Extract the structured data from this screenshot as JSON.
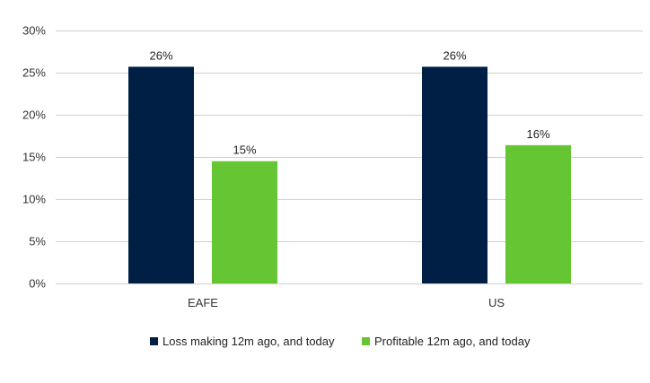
{
  "chart_data": {
    "type": "bar",
    "categories": [
      "EAFE",
      "US"
    ],
    "series": [
      {
        "name": "Loss making 12m ago, and today",
        "values": [
          25.7,
          25.7
        ],
        "labels": [
          "26%",
          "26%"
        ],
        "color": "#001f45"
      },
      {
        "name": "Profitable 12m ago, and today",
        "values": [
          14.5,
          16.4
        ],
        "labels": [
          "15%",
          "16%"
        ],
        "color": "#66c533"
      }
    ],
    "title": "",
    "xlabel": "",
    "ylabel": "",
    "ylim": [
      0,
      30
    ],
    "yticks": [
      0,
      5,
      10,
      15,
      20,
      25,
      30
    ],
    "ytick_labels": [
      "0%",
      "5%",
      "10%",
      "15%",
      "20%",
      "25%",
      "30%"
    ],
    "grid": true,
    "legend_position": "bottom"
  }
}
